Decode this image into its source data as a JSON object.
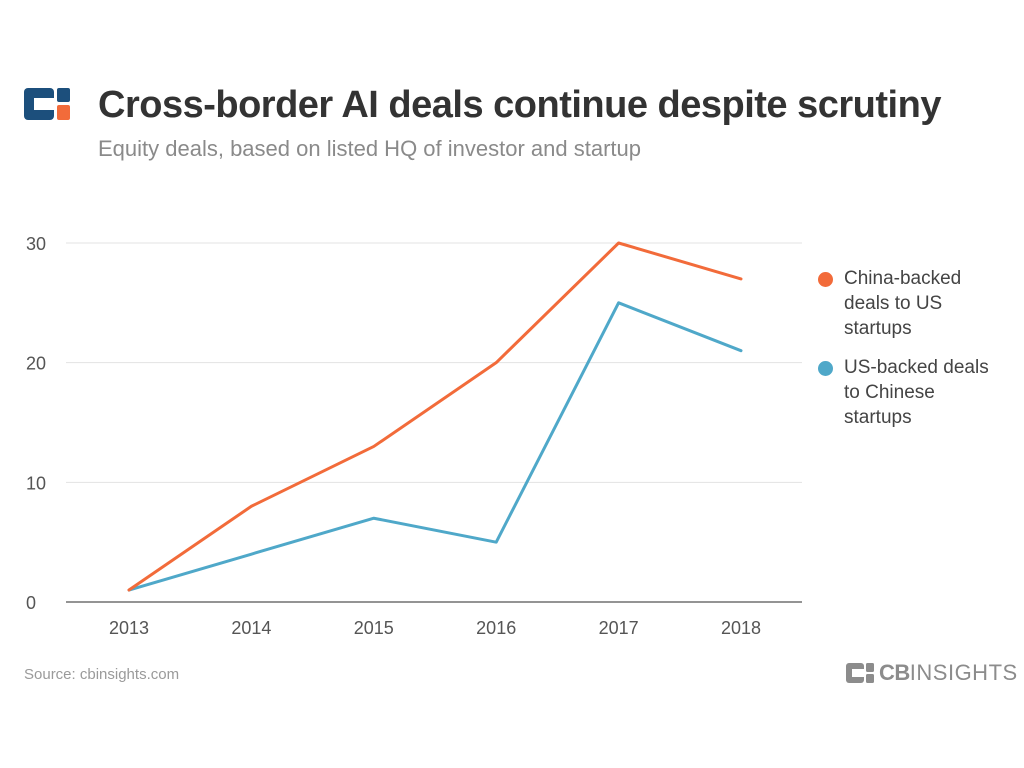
{
  "header": {
    "title": "Cross-border AI deals continue despite scrutiny",
    "subtitle": "Equity deals, based on listed HQ of investor and startup"
  },
  "footer": {
    "source": "Source: cbinsights.com",
    "brand_cb": "CB",
    "brand_rest": "INSIGHTS"
  },
  "colors": {
    "china": "#f26b3a",
    "us": "#4fa8c9",
    "logo_navy": "#1c4f7c",
    "logo_orange": "#f26b3a",
    "grid": "#e3e3e3",
    "axis": "#555555"
  },
  "chart_data": {
    "type": "line",
    "title": "Cross-border AI deals continue despite scrutiny",
    "subtitle": "Equity deals, based on listed HQ of investor and startup",
    "categories": [
      "2013",
      "2014",
      "2015",
      "2016",
      "2017",
      "2018"
    ],
    "series": [
      {
        "name": "China-backed deals to US startups",
        "values": [
          1,
          8,
          13,
          20,
          30,
          27
        ]
      },
      {
        "name": "US-backed deals to Chinese startups",
        "values": [
          1,
          4,
          7,
          5,
          25,
          21
        ]
      }
    ],
    "ylim": [
      0,
      30
    ],
    "yticks": [
      0,
      10,
      20,
      30
    ],
    "grid": true,
    "legend": "right"
  }
}
